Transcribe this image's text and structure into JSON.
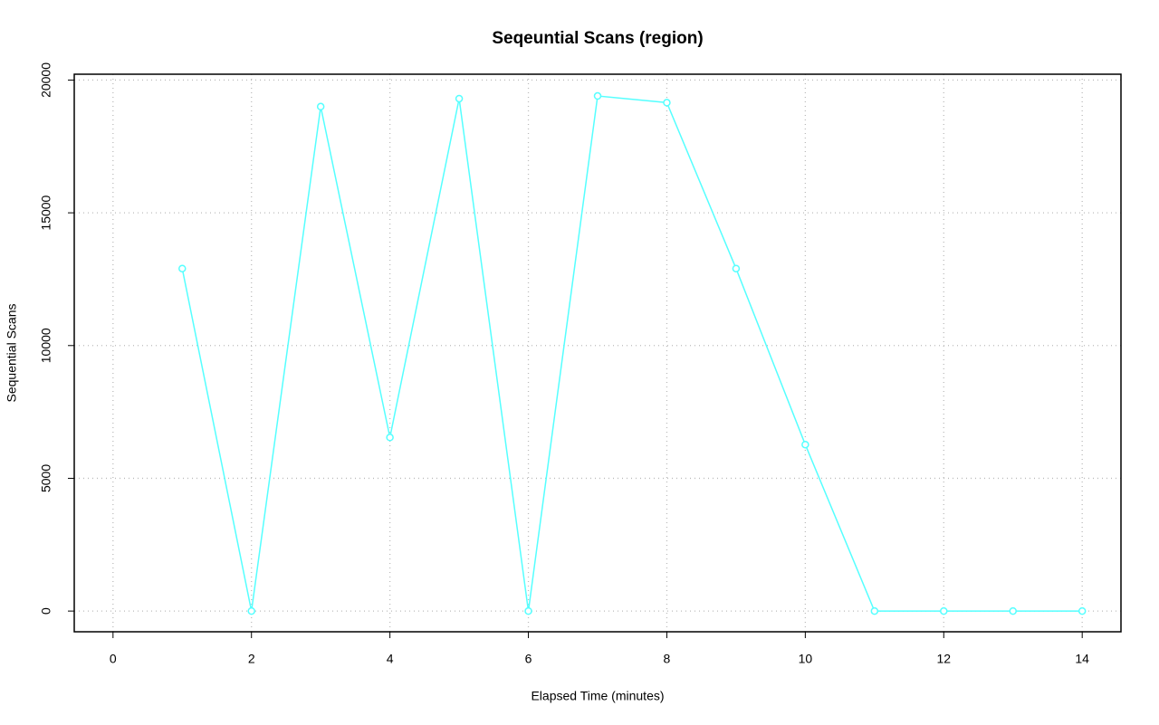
{
  "chart_data": {
    "type": "line",
    "title": "Seqeuntial Scans (region)",
    "x_label": "Elapsed Time (minutes)",
    "y_label": "Sequential Scans",
    "x": [
      1,
      2,
      3,
      4,
      5,
      6,
      7,
      8,
      9,
      10,
      11,
      12,
      13,
      14
    ],
    "series": [
      {
        "name": "Sequential Scans",
        "color": "#55ffff",
        "values": [
          12900,
          0,
          19000,
          6540,
          19300,
          0,
          19400,
          19150,
          12900,
          6270,
          0,
          0,
          0,
          0
        ]
      }
    ],
    "xlim": [
      -0.56,
      14.56
    ],
    "ylim": [
      -780,
      20220
    ],
    "xticks": [
      0,
      2,
      4,
      6,
      8,
      10,
      12,
      14
    ],
    "yticks": [
      0,
      5000,
      10000,
      15000,
      20000
    ],
    "grid": true
  }
}
